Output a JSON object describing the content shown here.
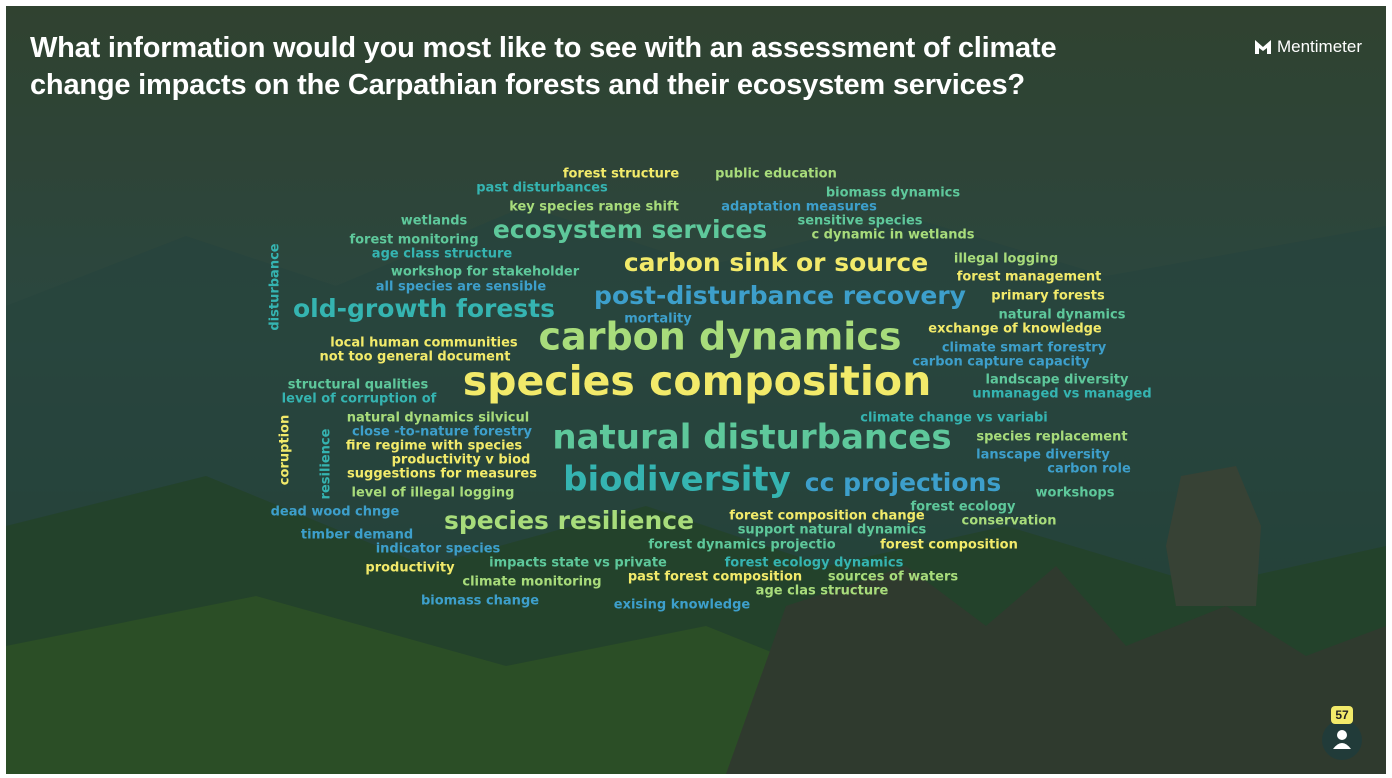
{
  "header": {
    "title": "What information would you most like to see with an assessment of climate change impacts on the Carpathian forests and their ecosystem services?",
    "brand": "Mentimeter"
  },
  "word_cloud": {
    "words": [
      "forest structure",
      "public education",
      "past disturbances",
      "biomass dynamics",
      "key species range shift",
      "adaptation measures",
      "wetlands",
      "sensitive species",
      "ecosystem services",
      "c dynamic in wetlands",
      "forest monitoring",
      "age class structure",
      "disturbance",
      "carbon sink or source",
      "illegal logging",
      "workshop for stakeholder",
      "forest management",
      "all species are sensible",
      "post-disturbance recovery",
      "primary forests",
      "old-growth forests",
      "mortality",
      "natural dynamics",
      "exchange of knowledge",
      "carbon dynamics",
      "local human communities",
      "climate smart forestry",
      "not too general document",
      "carbon capture capacity",
      "species composition",
      "landscape diversity",
      "structural qualities",
      "unmanaged vs managed",
      "level of corruption of",
      "natural dynamics silvicul",
      "climate change vs variabi",
      "coruption",
      "resilience",
      "close -to-nature forestry",
      "natural disturbances",
      "species replacement",
      "fire regime with species",
      "productivity v biod",
      "lanscape diversity",
      "suggestions for measures",
      "carbon role",
      "biodiversity",
      "cc projections",
      "level of illegal logging",
      "workshops",
      "forest ecology",
      "dead wood chnge",
      "forest composition change",
      "conservation",
      "species resilience",
      "support natural dynamics",
      "timber demand",
      "forest dynamics projectio",
      "forest composition",
      "indicator species",
      "impacts state vs private",
      "forest ecology dynamics",
      "productivity",
      "past forest composition",
      "sources of waters",
      "climate monitoring",
      "age clas structure",
      "biomass change",
      "exising knowledge"
    ]
  },
  "participants": {
    "count": 57
  }
}
